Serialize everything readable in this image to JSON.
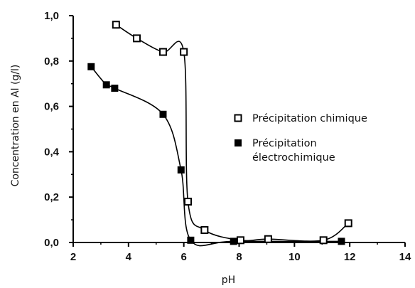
{
  "chart_data": {
    "type": "scatter",
    "xlabel": "pH",
    "ylabel": "Concentration en Al (g/l)",
    "xlim": [
      2,
      14
    ],
    "ylim": [
      0,
      1.0
    ],
    "x_ticks": [
      "2",
      "4",
      "6",
      "8",
      "10",
      "12",
      "14"
    ],
    "y_ticks": [
      "0,0",
      "0,2",
      "0,4",
      "0,6",
      "0,8",
      "1,0"
    ],
    "legend_position": "right",
    "series": [
      {
        "name": "Précipitation chimique",
        "marker": "open-square",
        "points": [
          {
            "x": 3.55,
            "y": 0.96
          },
          {
            "x": 4.3,
            "y": 0.9
          },
          {
            "x": 5.25,
            "y": 0.84
          },
          {
            "x": 6.0,
            "y": 0.84
          },
          {
            "x": 6.15,
            "y": 0.18
          },
          {
            "x": 6.75,
            "y": 0.055
          },
          {
            "x": 8.05,
            "y": 0.01
          },
          {
            "x": 9.05,
            "y": 0.015
          },
          {
            "x": 11.05,
            "y": 0.01
          },
          {
            "x": 11.95,
            "y": 0.085
          }
        ]
      },
      {
        "name": "Précipitation électrochimique",
        "marker": "filled-square",
        "points": [
          {
            "x": 2.65,
            "y": 0.775
          },
          {
            "x": 3.2,
            "y": 0.695
          },
          {
            "x": 3.5,
            "y": 0.68
          },
          {
            "x": 5.25,
            "y": 0.565
          },
          {
            "x": 5.9,
            "y": 0.32
          },
          {
            "x": 6.25,
            "y": 0.01
          },
          {
            "x": 7.8,
            "y": 0.005
          },
          {
            "x": 11.7,
            "y": 0.005
          }
        ]
      }
    ],
    "legend": [
      {
        "lines": [
          "Précipitation chimique"
        ],
        "marker": "open-square"
      },
      {
        "lines": [
          "Précipitation",
          "électrochimique"
        ],
        "marker": "filled-square"
      }
    ]
  }
}
